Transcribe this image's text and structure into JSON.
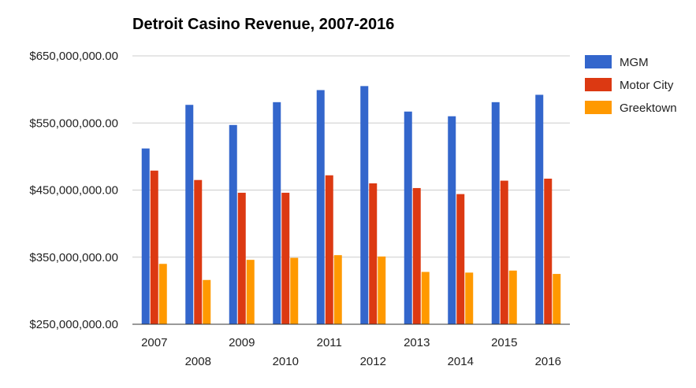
{
  "chart_data": {
    "type": "bar",
    "title": "Detroit Casino Revenue, 2007-2016",
    "xlabel": "",
    "ylabel": "",
    "categories": [
      "2007",
      "2008",
      "2009",
      "2010",
      "2011",
      "2012",
      "2013",
      "2014",
      "2015",
      "2016"
    ],
    "series": [
      {
        "name": "MGM",
        "color": "#3366cc",
        "values": [
          512000000,
          577000000,
          547000000,
          581000000,
          599000000,
          605000000,
          567000000,
          560000000,
          581000000,
          592000000
        ]
      },
      {
        "name": "Motor City",
        "color": "#dc3912",
        "values": [
          479000000,
          465000000,
          446000000,
          446000000,
          472000000,
          460000000,
          453000000,
          444000000,
          464000000,
          467000000
        ]
      },
      {
        "name": "Greektown",
        "color": "#ff9900",
        "values": [
          340000000,
          316000000,
          346000000,
          349000000,
          353000000,
          351000000,
          328000000,
          327000000,
          330000000,
          325000000
        ]
      }
    ],
    "ylim": [
      250000000,
      650000000
    ],
    "y_ticks": [
      {
        "value": 250000000,
        "label": "$250,000,000.00"
      },
      {
        "value": 350000000,
        "label": "$350,000,000.00"
      },
      {
        "value": 450000000,
        "label": "$450,000,000.00"
      },
      {
        "value": 550000000,
        "label": "$550,000,000.00"
      },
      {
        "value": 650000000,
        "label": "$650,000,000.00"
      }
    ],
    "grid": true,
    "legend_position": "right"
  }
}
